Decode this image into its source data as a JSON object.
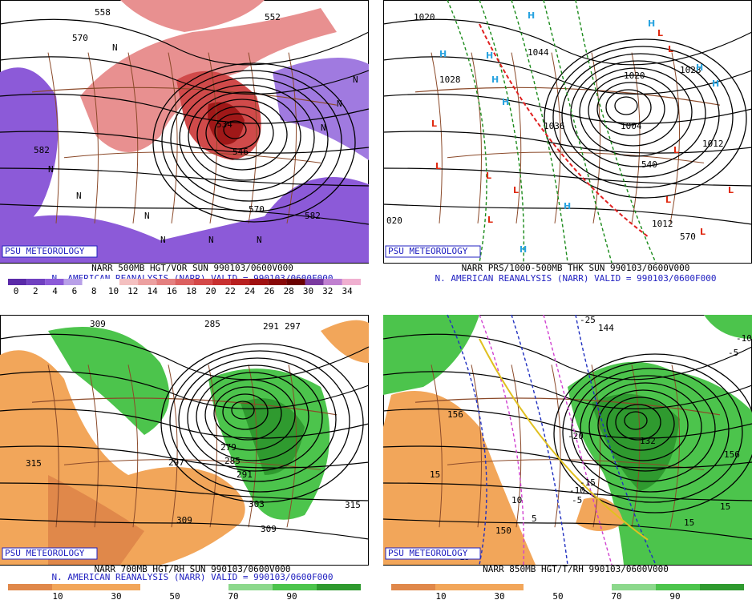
{
  "panels": [
    {
      "logo": "PSU METEOROLOGY",
      "caption": "NARR 500MB HGT/VOR SUN 990103/0600V000",
      "subcaption": "N. AMERICAN REANALYSIS (NARR) VALID = 990103/0600F000",
      "colorbar": [
        0,
        2,
        4,
        6,
        8,
        10,
        12,
        14,
        16,
        18,
        20,
        22,
        24,
        26,
        28,
        30,
        32,
        34
      ],
      "contour_labels": [
        "558",
        "570",
        "582",
        "546",
        "534",
        "552",
        "570",
        "582"
      ],
      "symbol": "N"
    },
    {
      "logo": "PSU METEOROLOGY",
      "caption": "NARR PRS/1000-500MB THK SUN 990103/0600V000",
      "subcaption": "N. AMERICAN REANALYSIS (NARR) VALID = 990103/0600F000",
      "contour_labels": [
        "1020",
        "1028",
        "1044",
        "1036",
        "1004",
        "1012",
        "1020",
        "1028",
        "540",
        "570",
        "020",
        "1012"
      ],
      "high": "H",
      "low": "L"
    },
    {
      "logo": "PSU METEOROLOGY",
      "caption": "NARR 700MB HGT/RH SUN 990103/0600V000",
      "subcaption": "N. AMERICAN REANALYSIS (NARR) VALID = 990103/0600F000",
      "colorbar": [
        10,
        30,
        50,
        70,
        90
      ],
      "contour_labels": [
        "309",
        "285",
        "291",
        "297",
        "279",
        "285",
        "291",
        "297",
        "303",
        "309",
        "315",
        "315",
        "309"
      ]
    },
    {
      "logo": "PSU METEOROLOGY",
      "caption": "NARR 850MB HGT/T/RH 990103/0600V000",
      "subcaption": "",
      "colorbar": [
        10,
        30,
        50,
        70,
        90
      ],
      "contour_labels": [
        "-25",
        "144",
        "-10",
        "-5",
        "156",
        "-20",
        "-15",
        "-10",
        "-5",
        "15",
        "10",
        "5",
        "150",
        "132",
        "15",
        "15",
        "15",
        "156"
      ]
    }
  ]
}
